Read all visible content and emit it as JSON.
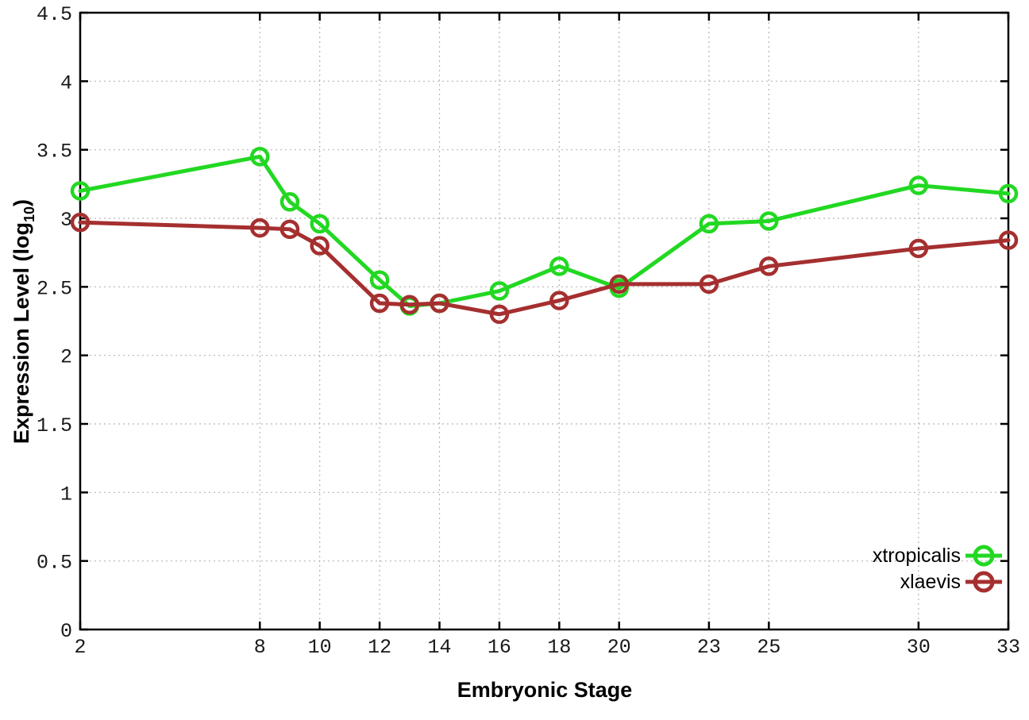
{
  "chart_data": {
    "type": "line",
    "title": "",
    "xlabel": "Embryonic Stage",
    "ylabel": "Expression Level (log10)",
    "ylabel_parts": {
      "prefix": "Expression Level (log",
      "sub": "10",
      "suffix": ")"
    },
    "x": [
      2,
      8,
      9,
      10,
      12,
      13,
      14,
      16,
      18,
      20,
      23,
      25,
      30,
      33
    ],
    "x_tick_labels": [
      "2",
      "8",
      "10",
      "12",
      "14",
      "16",
      "18",
      "20",
      "23",
      "25",
      "30",
      "33"
    ],
    "x_tick_values": [
      2,
      8,
      10,
      12,
      14,
      16,
      18,
      20,
      23,
      25,
      30,
      33
    ],
    "y_tick_labels": [
      "0",
      "0.5",
      "1",
      "1.5",
      "2",
      "2.5",
      "3",
      "3.5",
      "4",
      "4.5"
    ],
    "y_tick_values": [
      0,
      0.5,
      1,
      1.5,
      2,
      2.5,
      3,
      3.5,
      4,
      4.5
    ],
    "xlim": [
      2,
      33
    ],
    "ylim": [
      0,
      4.5
    ],
    "grid": "dotted",
    "grid_color": "#b5b5b5",
    "border_color": "#000000",
    "legend_position": "inside-bottom-right",
    "series": [
      {
        "name": "xtropicalis",
        "color": "#22d822",
        "marker": "open-circle",
        "values": [
          3.2,
          3.45,
          3.12,
          2.96,
          2.55,
          2.36,
          2.38,
          2.47,
          2.65,
          2.49,
          2.96,
          2.98,
          3.24,
          3.18
        ]
      },
      {
        "name": "xlaevis",
        "color": "#a52f2f",
        "marker": "open-circle",
        "values": [
          2.97,
          2.93,
          2.92,
          2.8,
          2.38,
          2.37,
          2.38,
          2.3,
          2.4,
          2.52,
          2.52,
          2.65,
          2.78,
          2.84
        ]
      }
    ]
  }
}
